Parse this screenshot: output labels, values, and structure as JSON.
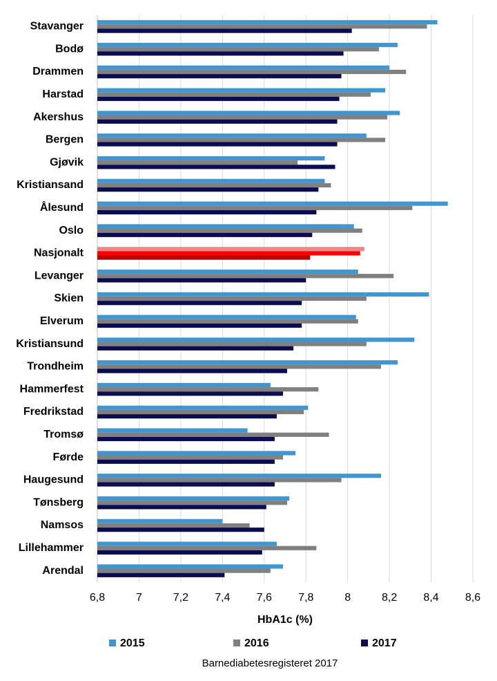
{
  "chart_data": {
    "type": "hbar",
    "categories": [
      "Stavanger",
      "Bodø",
      "Drammen",
      "Harstad",
      "Akershus",
      "Bergen",
      "Gjøvik",
      "Kristiansand",
      "Ålesund",
      "Oslo",
      "Nasjonalt",
      "Levanger",
      "Skien",
      "Elverum",
      "Kristiansund",
      "Trondheim",
      "Hammerfest",
      "Fredrikstad",
      "Tromsø",
      "Førde",
      "Haugesund",
      "Tønsberg",
      "Namsos",
      "Lillehammer",
      "Arendal"
    ],
    "series": [
      {
        "name": "2015",
        "color": "#4296cf",
        "values": [
          8.43,
          8.24,
          8.2,
          8.18,
          8.25,
          8.09,
          7.89,
          7.89,
          8.48,
          8.03,
          8.08,
          8.05,
          8.39,
          8.04,
          8.32,
          8.24,
          7.63,
          7.81,
          7.52,
          7.75,
          8.16,
          7.72,
          7.4,
          7.66,
          7.69
        ]
      },
      {
        "name": "2016",
        "color": "#808080",
        "values": [
          8.38,
          8.15,
          8.28,
          8.11,
          8.19,
          8.18,
          7.76,
          7.92,
          8.31,
          8.07,
          8.06,
          8.22,
          8.09,
          8.05,
          8.09,
          8.16,
          7.86,
          7.79,
          7.91,
          7.69,
          7.97,
          7.71,
          7.53,
          7.85,
          7.63
        ]
      },
      {
        "name": "2017",
        "color": "#0c0c52",
        "values": [
          8.02,
          7.98,
          7.97,
          7.96,
          7.95,
          7.95,
          7.94,
          7.86,
          7.85,
          7.83,
          7.82,
          7.8,
          7.78,
          7.78,
          7.74,
          7.71,
          7.69,
          7.66,
          7.65,
          7.65,
          7.65,
          7.61,
          7.6,
          7.59,
          7.41
        ]
      }
    ],
    "highlight": {
      "category_index": 10,
      "colors": [
        "#e88a8a",
        "#ff0000",
        "#c00000"
      ]
    },
    "xlim": [
      6.8,
      8.6
    ],
    "xticks": [
      {
        "value": 6.8,
        "label": "6,8"
      },
      7,
      {
        "value": 7.2,
        "label": "7,2"
      },
      {
        "value": 7.4,
        "label": "7,4"
      },
      {
        "value": 7.6,
        "label": "7,6"
      },
      {
        "value": 7.8,
        "label": "7,8"
      },
      8,
      {
        "value": 8.2,
        "label": "8,2"
      },
      {
        "value": 8.4,
        "label": "8,4"
      },
      {
        "value": 8.6,
        "label": "8,6"
      }
    ],
    "xlabel": "HbA1c (%)",
    "source": "Barnediabetesregisteret 2017",
    "grid": true
  }
}
